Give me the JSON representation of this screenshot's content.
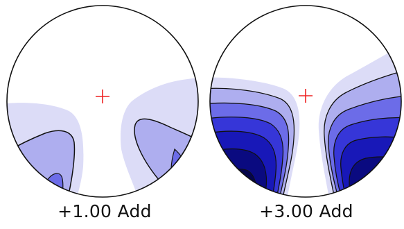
{
  "lens_maps": [
    {
      "caption": "+1.00 Add"
    },
    {
      "caption": "+3.00 Add"
    }
  ],
  "colors": {
    "level1": "#dcdcf7",
    "level2": "#aeaeef",
    "level3": "#6c6ce8",
    "level4": "#3636d8",
    "level5": "#1818b8",
    "level6": "#0a0a80",
    "level7": "#04044a",
    "crosshair": "#ee2222",
    "outline": "#111111"
  }
}
